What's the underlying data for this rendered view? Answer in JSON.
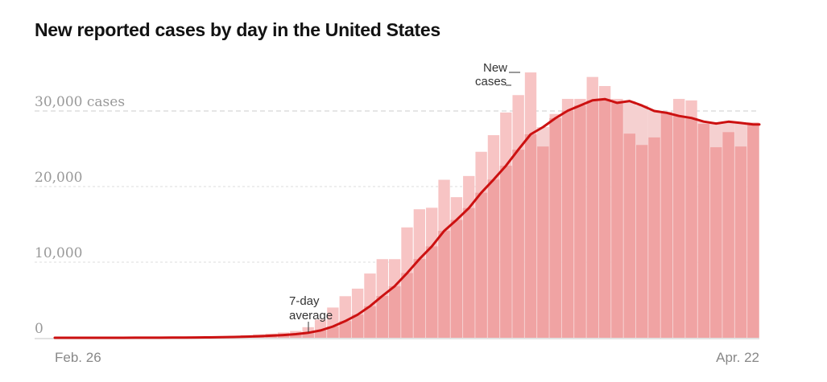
{
  "title": "New reported cases by day in the United States",
  "colors": {
    "bar": "#f7c4c4",
    "bar_under_line": "#f0a3a3",
    "avg_area": "#f5d0d0",
    "line": "#cc1111",
    "grid": "#dddddd",
    "axis_text": "#999999"
  },
  "annotations": {
    "new_cases_line1": "New",
    "new_cases_line2": "cases",
    "avg_line1": "7-day",
    "avg_line2": "average"
  },
  "chart_data": {
    "type": "bar",
    "title": "New reported cases by day in the United States",
    "xlabel": "",
    "ylabel": "cases",
    "x_start_label": "Feb. 26",
    "x_end_label": "Apr. 22",
    "ylim": [
      0,
      36000
    ],
    "y_ticks": [
      {
        "value": 0,
        "label": "0"
      },
      {
        "value": 10000,
        "label": "10,000"
      },
      {
        "value": 20000,
        "label": "20,000"
      },
      {
        "value": 30000,
        "label": "30,000 cases"
      }
    ],
    "grid": true,
    "series": [
      {
        "name": "New cases",
        "values": [
          0,
          0,
          3,
          5,
          5,
          10,
          15,
          20,
          30,
          50,
          60,
          80,
          100,
          150,
          250,
          350,
          450,
          550,
          700,
          900,
          1400,
          2400,
          4000,
          5500,
          6500,
          8500,
          10400,
          10400,
          14600,
          17000,
          17200,
          20900,
          18600,
          21400,
          24600,
          26800,
          29800,
          32100,
          35100,
          25300,
          29600,
          31600,
          31600,
          34500,
          33300,
          31600,
          27000,
          25500,
          26500,
          29900,
          31600,
          31400,
          28300,
          25200,
          27200,
          25300,
          28500
        ]
      },
      {
        "name": "7-day average",
        "derived": "rolling 7-day mean of New cases"
      }
    ]
  }
}
